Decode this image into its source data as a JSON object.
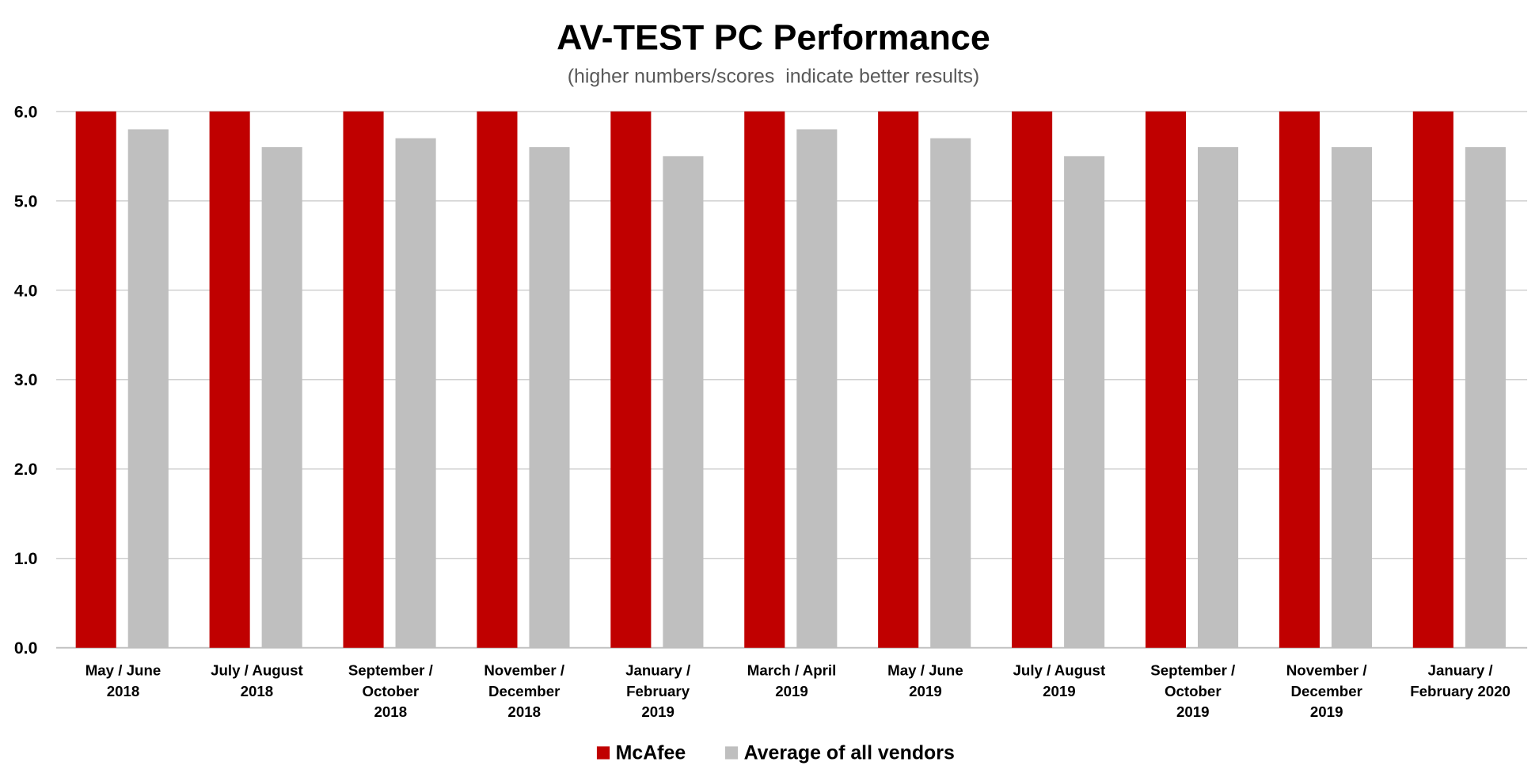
{
  "chart_data": {
    "type": "bar",
    "title": "AV-TEST PC Performance",
    "subtitle": "(higher numbers/scores  indicate better results)",
    "xlabel": "",
    "ylabel": "",
    "ylim": [
      0,
      6
    ],
    "yticks": [
      "0.0",
      "1.0",
      "2.0",
      "3.0",
      "4.0",
      "5.0",
      "6.0"
    ],
    "grid": true,
    "legend_position": "bottom",
    "categories": [
      [
        "May / June",
        "2018"
      ],
      [
        "July / August",
        "2018"
      ],
      [
        "September /",
        "October",
        "2018"
      ],
      [
        "November /",
        "December",
        "2018"
      ],
      [
        "January /",
        "February",
        "2019"
      ],
      [
        "March / April",
        "2019"
      ],
      [
        "May / June",
        "2019"
      ],
      [
        "July / August",
        "2019"
      ],
      [
        "September /",
        "October",
        "2019"
      ],
      [
        "November /",
        "December",
        "2019"
      ],
      [
        "January /",
        "February 2020"
      ]
    ],
    "series": [
      {
        "name": "McAfee",
        "color": "#c00000",
        "values": [
          6.0,
          6.0,
          6.0,
          6.0,
          6.0,
          6.0,
          6.0,
          6.0,
          6.0,
          6.0,
          6.0
        ]
      },
      {
        "name": "Average of all vendors",
        "color": "#bfbfbf",
        "values": [
          5.8,
          5.6,
          5.7,
          5.6,
          5.5,
          5.8,
          5.7,
          5.5,
          5.6,
          5.6,
          5.6
        ]
      }
    ]
  }
}
